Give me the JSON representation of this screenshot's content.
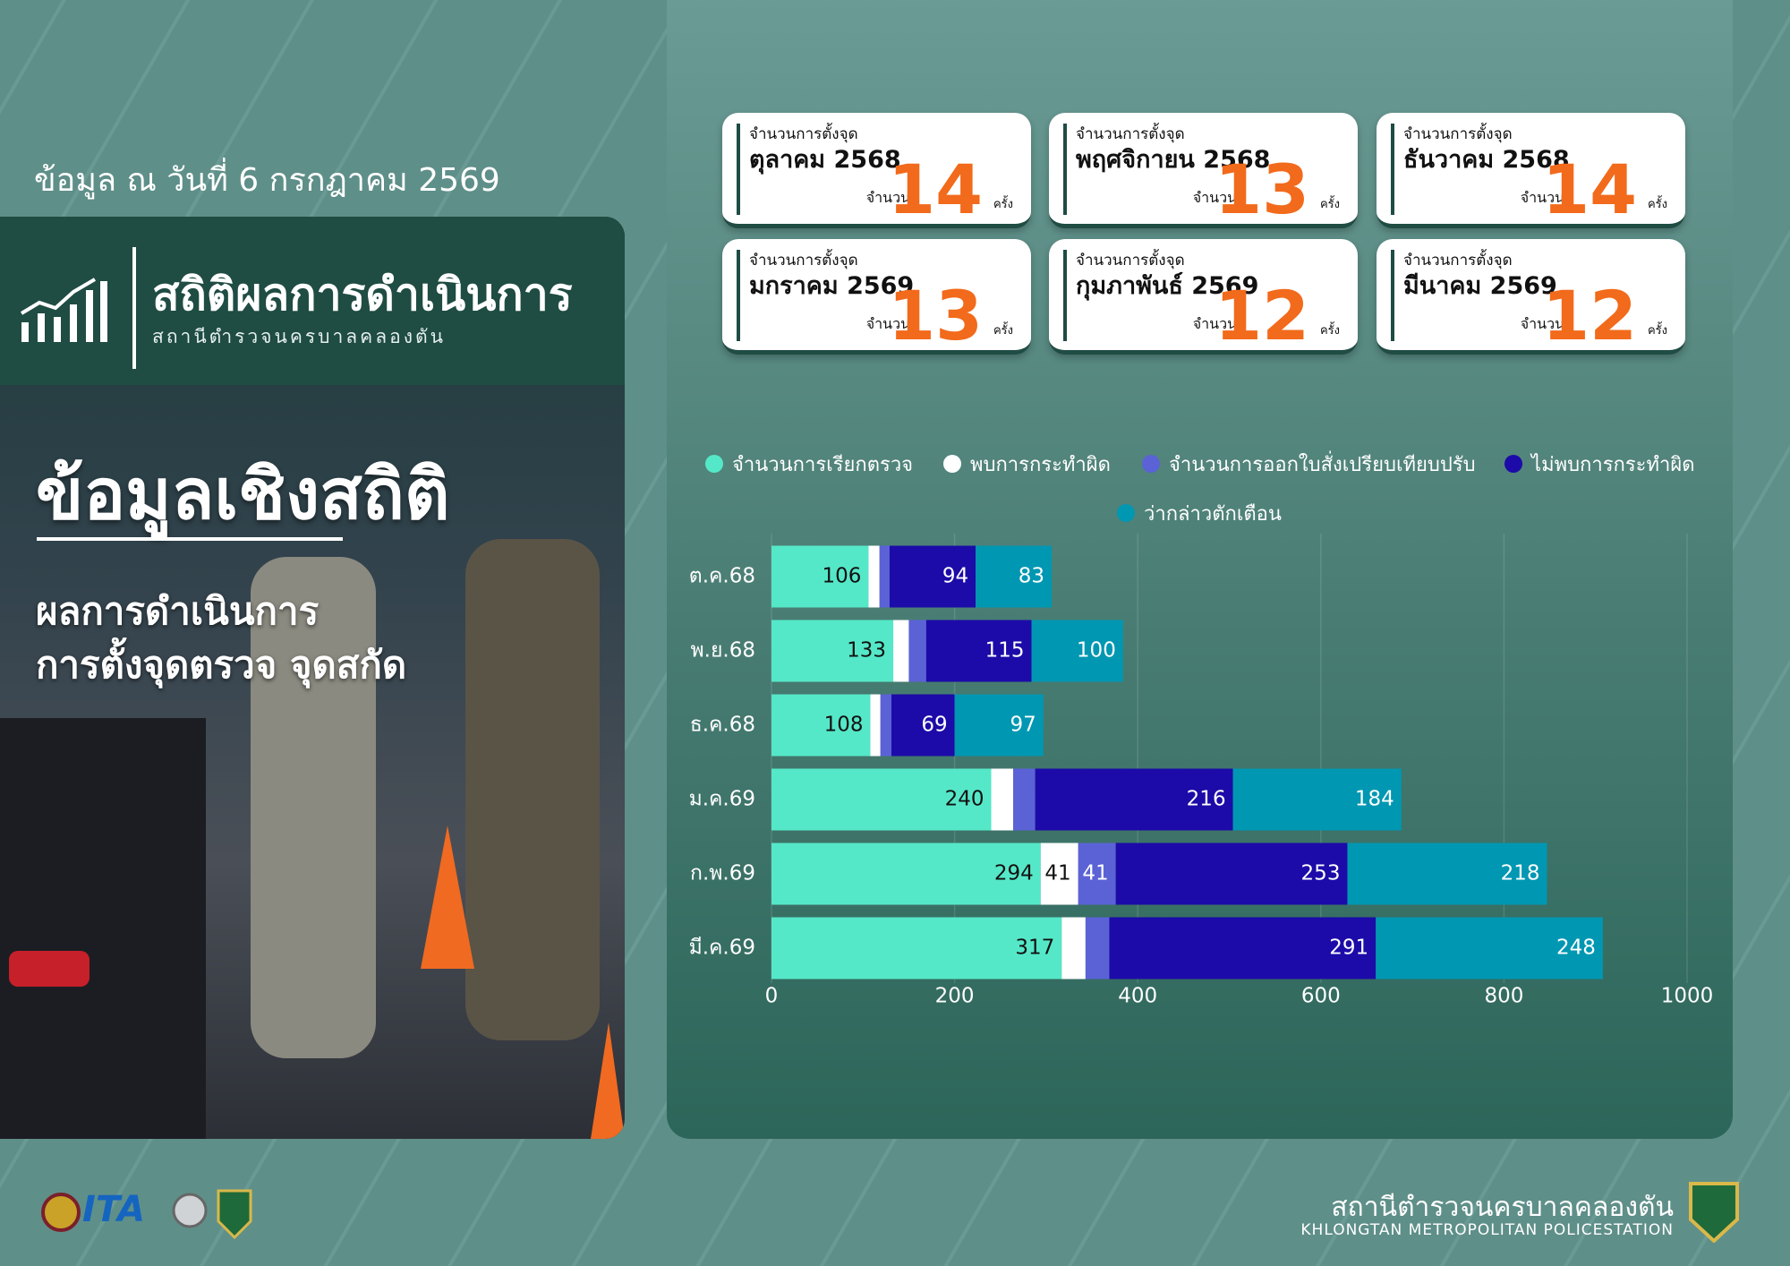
{
  "header": {
    "date": "ข้อมูล ณ วันที่ 6 กรกฎาคม 2569",
    "title": "สถิติผลการดำเนินการ",
    "subtitle": "สถานีตำรวจนครบาลคลองตัน",
    "heading": "ข้อมูลเชิงสถิติ",
    "description_line1": "ผลการดำเนินการ",
    "description_line2": "การตั้งจุดตรวจ จุดสกัด"
  },
  "cards": [
    {
      "heading": "จำนวนการตั้งจุด",
      "month": "ตุลาคม 2568",
      "count_label": "จำนวน",
      "count": 14,
      "unit": "ครั้ง"
    },
    {
      "heading": "จำนวนการตั้งจุด",
      "month": "พฤศจิกายน 2568",
      "count_label": "จำนวน",
      "count": 13,
      "unit": "ครั้ง"
    },
    {
      "heading": "จำนวนการตั้งจุด",
      "month": "ธันวาคม 2568",
      "count_label": "จำนวน",
      "count": 14,
      "unit": "ครั้ง"
    },
    {
      "heading": "จำนวนการตั้งจุด",
      "month": "มกราคม 2569",
      "count_label": "จำนวน",
      "count": 13,
      "unit": "ครั้ง"
    },
    {
      "heading": "จำนวนการตั้งจุด",
      "month": "กุมภาพันธ์ 2569",
      "count_label": "จำนวน",
      "count": 12,
      "unit": "ครั้ง"
    },
    {
      "heading": "จำนวนการตั้งจุด",
      "month": "มีนาคม 2569",
      "count_label": "จำนวน",
      "count": 12,
      "unit": "ครั้ง"
    }
  ],
  "chart_data": {
    "type": "stacked-bar-horizontal",
    "categories": [
      "ต.ค.68",
      "พ.ย.68",
      "ธ.ค.68",
      "ม.ค.69",
      "ก.พ.69",
      "มี.ค.69"
    ],
    "series": [
      {
        "name": "จำนวนการเรียกตรวจ",
        "color": "#55e8c8",
        "values": [
          106,
          133,
          108,
          240,
          294,
          317
        ]
      },
      {
        "name": "พบการกระทำผิด",
        "color": "#ffffff",
        "values": [
          12,
          17,
          11,
          24,
          41,
          26
        ],
        "value_labels": [
          null,
          null,
          null,
          null,
          "41",
          null
        ]
      },
      {
        "name": "จำนวนการออกใบสั่งเปรียบเทียบปรับ",
        "color": "#5b62d6",
        "values": [
          11,
          19,
          12,
          24,
          41,
          26
        ],
        "value_labels": [
          null,
          null,
          null,
          null,
          "41",
          null
        ]
      },
      {
        "name": "ไม่พบการกระทำผิด",
        "color": "#1c0ba8",
        "values": [
          94,
          115,
          69,
          216,
          253,
          291
        ]
      },
      {
        "name": "ว่ากล่าวตักเตือน",
        "color": "#0097b2",
        "values": [
          83,
          100,
          97,
          184,
          218,
          248
        ]
      }
    ],
    "xlim": [
      0,
      1000
    ],
    "xticks": [
      0,
      200,
      400,
      600,
      800,
      1000
    ],
    "grid": true,
    "legend": "top"
  },
  "footer": {
    "station_th": "สถานีตำรวจนครบาลคลองตัน",
    "station_en": "KHLONGTAN METROPOLITAN POLICESTATION",
    "logo_text": "ITA"
  }
}
